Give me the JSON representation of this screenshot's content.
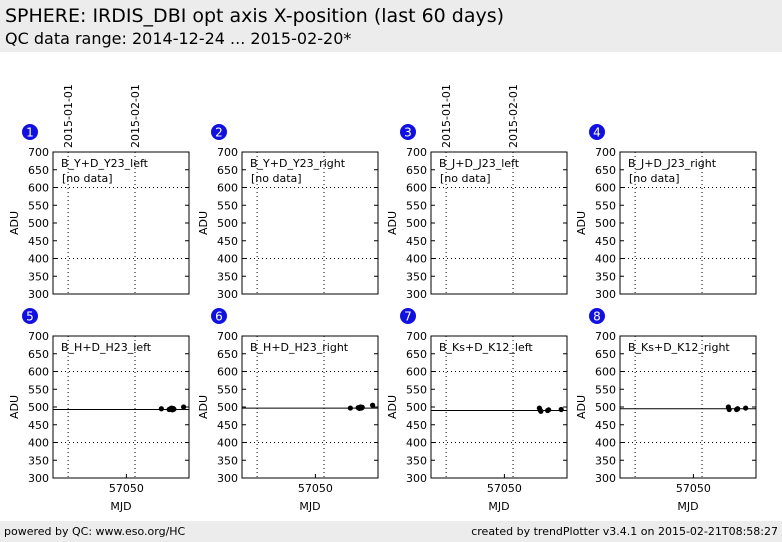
{
  "header": {
    "title": "SPHERE: IRDIS_DBI opt axis X-position (last 60 days)",
    "subtitle": "QC data range: 2014-12-24 ... 2015-02-20*"
  },
  "footer": {
    "left": "powered by QC: www.eso.org/HC",
    "right": "created by trendPlotter v3.4.1 on 2015-02-21T08:58:27"
  },
  "colors": {
    "badge": "#1010e0",
    "header_bg": "#ececec",
    "points": "#000000"
  },
  "chart_data": [
    {
      "type": "scatter",
      "panel": "1",
      "label": "B_Y+D_Y23_left",
      "note": "[no data]",
      "ylabel": "ADU",
      "xlabel": "",
      "ylim": [
        300,
        700
      ],
      "yticks": [
        300,
        350,
        400,
        450,
        500,
        550,
        600,
        650,
        700
      ],
      "xticks": [],
      "date_marks": [
        "2015-01-01",
        "2015-02-01"
      ],
      "reference_lines": [
        400,
        600
      ],
      "points": []
    },
    {
      "type": "scatter",
      "panel": "2",
      "label": "B_Y+D_Y23_right",
      "note": "[no data]",
      "ylabel": "ADU",
      "xlabel": "",
      "ylim": [
        300,
        700
      ],
      "yticks": [
        300,
        350,
        400,
        450,
        500,
        550,
        600,
        650,
        700
      ],
      "xticks": [],
      "date_marks": [],
      "reference_lines": [
        400,
        600
      ],
      "points": []
    },
    {
      "type": "scatter",
      "panel": "3",
      "label": "B_J+D_J23_left",
      "note": "[no data]",
      "ylabel": "ADU",
      "xlabel": "",
      "ylim": [
        300,
        700
      ],
      "yticks": [
        300,
        350,
        400,
        450,
        500,
        550,
        600,
        650,
        700
      ],
      "xticks": [],
      "date_marks": [
        "2015-01-01",
        "2015-02-01"
      ],
      "reference_lines": [
        400,
        600
      ],
      "points": []
    },
    {
      "type": "scatter",
      "panel": "4",
      "label": "B_J+D_J23_right",
      "note": "[no data]",
      "ylabel": "ADU",
      "xlabel": "",
      "ylim": [
        300,
        700
      ],
      "yticks": [
        300,
        350,
        400,
        450,
        500,
        550,
        600,
        650,
        700
      ],
      "xticks": [],
      "date_marks": [],
      "reference_lines": [
        400,
        600
      ],
      "points": []
    },
    {
      "type": "scatter",
      "panel": "5",
      "label": "B_H+D_H23_left",
      "note": "",
      "ylabel": "ADU",
      "xlabel": "MJD",
      "ylim": [
        300,
        700
      ],
      "yticks": [
        300,
        350,
        400,
        450,
        500,
        550,
        600,
        650,
        700
      ],
      "xticks": [
        57050
      ],
      "date_marks": [],
      "reference_lines": [
        400,
        600
      ],
      "solid_line": 493,
      "points": [
        [
          57066.2,
          495
        ],
        [
          57069.8,
          493
        ],
        [
          57070.4,
          495
        ],
        [
          57070.9,
          497
        ],
        [
          57071.3,
          492
        ],
        [
          57071.7,
          496
        ],
        [
          57072.0,
          494
        ],
        [
          57076.5,
          500
        ]
      ]
    },
    {
      "type": "scatter",
      "panel": "6",
      "label": "B_H+D_H23_right",
      "note": "",
      "ylabel": "ADU",
      "xlabel": "MJD",
      "ylim": [
        300,
        700
      ],
      "yticks": [
        300,
        350,
        400,
        450,
        500,
        550,
        600,
        650,
        700
      ],
      "xticks": [
        57050
      ],
      "date_marks": [],
      "reference_lines": [
        400,
        600
      ],
      "solid_line": 497,
      "points": [
        [
          57066.2,
          497
        ],
        [
          57069.8,
          498
        ],
        [
          57070.4,
          496
        ],
        [
          57070.9,
          500
        ],
        [
          57071.3,
          497
        ],
        [
          57071.7,
          499
        ],
        [
          57076.5,
          505
        ]
      ]
    },
    {
      "type": "scatter",
      "panel": "7",
      "label": "B_Ks+D_K12_left",
      "note": "",
      "ylabel": "ADU",
      "xlabel": "MJD",
      "ylim": [
        300,
        700
      ],
      "yticks": [
        300,
        350,
        400,
        450,
        500,
        550,
        600,
        650,
        700
      ],
      "xticks": [
        57050
      ],
      "date_marks": [],
      "reference_lines": [
        400,
        600
      ],
      "solid_line": 490,
      "points": [
        [
          57066.2,
          497
        ],
        [
          57066.6,
          491
        ],
        [
          57066.9,
          488
        ],
        [
          57070.0,
          490
        ],
        [
          57070.5,
          492
        ],
        [
          57076.3,
          493
        ]
      ]
    },
    {
      "type": "scatter",
      "panel": "8",
      "label": "B_Ks+D_K12_right",
      "note": "",
      "ylabel": "ADU",
      "xlabel": "MJD",
      "ylim": [
        300,
        700
      ],
      "yticks": [
        300,
        350,
        400,
        450,
        500,
        550,
        600,
        650,
        700
      ],
      "xticks": [
        57050
      ],
      "date_marks": [],
      "reference_lines": [
        400,
        600
      ],
      "solid_line": 495,
      "points": [
        [
          57066.2,
          500
        ],
        [
          57066.6,
          493
        ],
        [
          57070.0,
          493
        ],
        [
          57070.5,
          495
        ],
        [
          57074.2,
          497
        ]
      ]
    }
  ]
}
